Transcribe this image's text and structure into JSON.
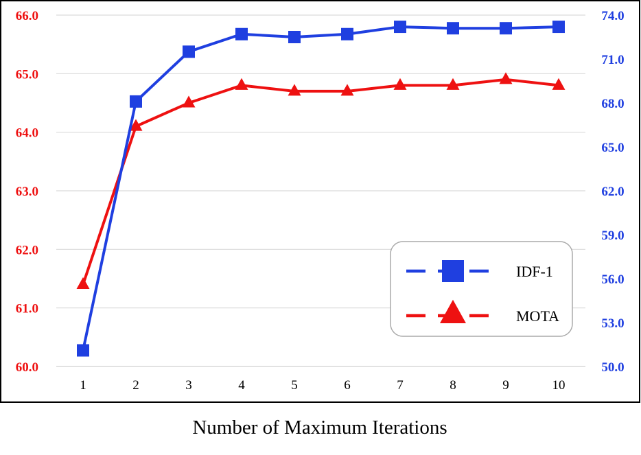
{
  "chart_data": {
    "type": "line",
    "xlabel": "Number of Maximum Iterations",
    "categories": [
      "1",
      "2",
      "3",
      "4",
      "5",
      "6",
      "7",
      "8",
      "9",
      "10"
    ],
    "y_left": {
      "ticks": [
        "60.0",
        "61.0",
        "62.0",
        "63.0",
        "64.0",
        "65.0",
        "66.0"
      ],
      "ylim": [
        60,
        66
      ],
      "color": "#ee1111"
    },
    "y_right": {
      "ticks": [
        "50.0",
        "53.0",
        "56.0",
        "59.0",
        "62.0",
        "65.0",
        "68.0",
        "71.0",
        "74.0"
      ],
      "ylim": [
        50,
        74
      ],
      "color": "#1f3fe0"
    },
    "grid": "horizontal",
    "legend_position": "bottom-right",
    "series": [
      {
        "name": "IDF-1",
        "axis": "right",
        "marker": "square",
        "color": "#1f3fe0",
        "values": [
          51.1,
          68.1,
          71.5,
          72.7,
          72.5,
          72.7,
          73.2,
          73.1,
          73.1,
          73.2
        ]
      },
      {
        "name": "MOTA",
        "axis": "left",
        "marker": "triangle",
        "color": "#ee1111",
        "values": [
          61.4,
          64.1,
          64.5,
          64.8,
          64.7,
          64.7,
          64.8,
          64.8,
          64.9,
          64.8
        ]
      }
    ]
  }
}
